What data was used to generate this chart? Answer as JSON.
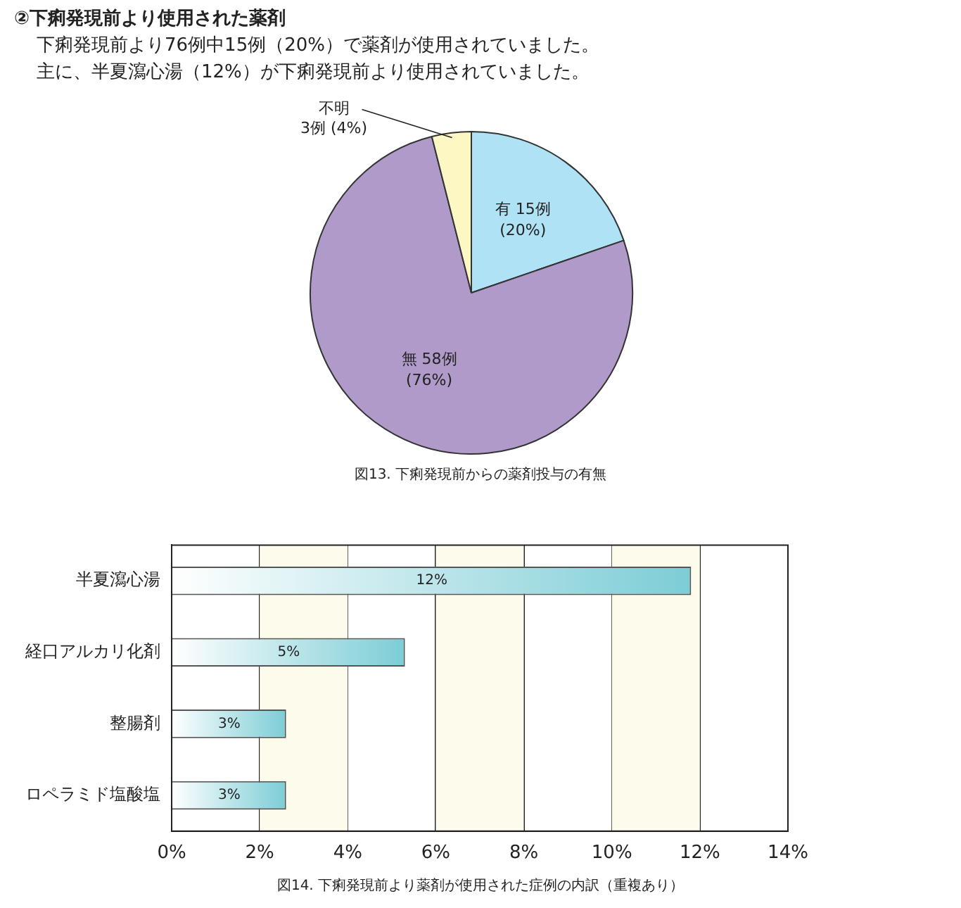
{
  "chart_data": [
    {
      "type": "pie",
      "title": "②下痢発現前より使用された薬剤",
      "subtitle": "下痢発現前より76例中15例（20%）で薬剤が使用されていました。",
      "categories": [
        "有",
        "無",
        "不明"
      ],
      "values": [
        15,
        58,
        3
      ],
      "colors": [
        "#b0e2f6",
        "#b09aca",
        "#fdf7c4"
      ],
      "value_labels": [
        "15例\n(20%)",
        "58例\n(76%)",
        "3例 (4%)"
      ],
      "annotations": [
        "主に、半夏瀉心湯（12%）が下痢発現前より使用されていました。",
        "図13. 下痢発現前からの薬剤投与の有無"
      ]
    },
    {
      "type": "bar",
      "orientation": "horizontal",
      "categories": [
        "半夏瀉心湯",
        "経口アルカリ化剤",
        "整腸剤",
        "ロペラミド塩酸塩"
      ],
      "values": [
        11.8,
        5.3,
        2.6,
        2.6
      ],
      "color": "#7ccdd6",
      "value_labels": [
        "12%",
        "5%",
        "3%",
        "3%"
      ],
      "xlim": [
        0,
        14
      ],
      "xticks": [
        {
          "value": 0,
          "label": "0%"
        },
        {
          "value": 2,
          "label": "2%"
        },
        {
          "value": 4,
          "label": "4%"
        },
        {
          "value": 6,
          "label": "6%"
        },
        {
          "value": 8,
          "label": "8%"
        },
        {
          "value": 10,
          "label": "10%"
        },
        {
          "value": 12,
          "label": "12%"
        },
        {
          "value": 14,
          "label": "14%"
        }
      ],
      "grid": "x",
      "bands": [
        {
          "axis": "x",
          "from": 2,
          "to": 4,
          "color": "#fdfbec"
        },
        {
          "axis": "x",
          "from": 6,
          "to": 8,
          "color": "#fdfbec"
        },
        {
          "axis": "x",
          "from": 10,
          "to": 12,
          "color": "#fdfbec"
        }
      ],
      "annotations": [
        "図14. 下痢発現前より薬剤が使用された症例の内訳（重複あり）"
      ]
    }
  ]
}
